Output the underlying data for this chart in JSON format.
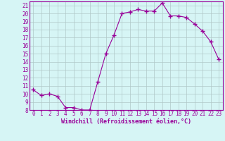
{
  "x": [
    0,
    1,
    2,
    3,
    4,
    5,
    6,
    7,
    8,
    9,
    10,
    11,
    12,
    13,
    14,
    15,
    16,
    17,
    18,
    19,
    20,
    21,
    22,
    23
  ],
  "y": [
    10.5,
    9.8,
    10.0,
    9.7,
    8.3,
    8.3,
    8.0,
    8.0,
    11.5,
    15.0,
    17.3,
    20.0,
    20.2,
    20.5,
    20.3,
    20.3,
    21.3,
    19.7,
    19.7,
    19.5,
    18.7,
    17.8,
    16.5,
    14.3
  ],
  "color": "#990099",
  "bg_color": "#d6f5f5",
  "grid_color": "#b0c8c8",
  "xlabel": "Windchill (Refroidissement éolien,°C)",
  "ylim": [
    8,
    21.5
  ],
  "xlim": [
    -0.5,
    23.5
  ],
  "yticks": [
    8,
    9,
    10,
    11,
    12,
    13,
    14,
    15,
    16,
    17,
    18,
    19,
    20,
    21
  ],
  "xticks": [
    0,
    1,
    2,
    3,
    4,
    5,
    6,
    7,
    8,
    9,
    10,
    11,
    12,
    13,
    14,
    15,
    16,
    17,
    18,
    19,
    20,
    21,
    22,
    23
  ],
  "xlabel_fontsize": 6.0,
  "tick_fontsize": 5.5,
  "marker": "+",
  "marker_size": 4.0,
  "linewidth": 0.8
}
